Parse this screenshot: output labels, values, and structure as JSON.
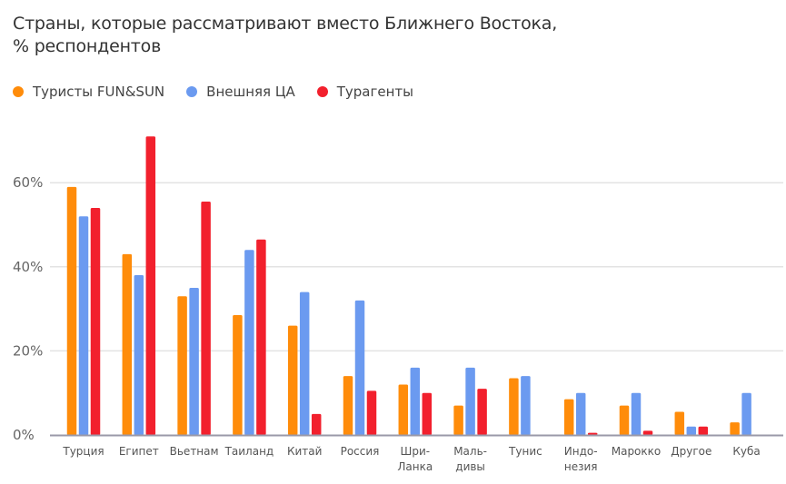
{
  "chart_data": {
    "type": "bar",
    "title": "Страны, которые рассматривают вместо Ближнего Востока, % респондентов",
    "title_lines": [
      "Страны, которые рассматривают вместо Ближнего Востока,",
      "% респондентов"
    ],
    "categories": [
      [
        "Турция"
      ],
      [
        "Египет"
      ],
      [
        "Вьетнам"
      ],
      [
        "Таиланд"
      ],
      [
        "Китай"
      ],
      [
        "Россия"
      ],
      [
        "Шри-",
        "Ланка"
      ],
      [
        "Маль-",
        "дивы"
      ],
      [
        "Тунис"
      ],
      [
        "Индо-",
        "незия"
      ],
      [
        "Марокко"
      ],
      [
        "Другое"
      ],
      [
        "Куба"
      ]
    ],
    "series": [
      {
        "name": "Туристы FUN&SUN",
        "color": "#FF8C0A",
        "values": [
          59,
          43,
          33,
          28.5,
          26,
          14,
          12,
          7,
          13.5,
          8.5,
          7,
          5.5,
          3
        ]
      },
      {
        "name": "Внешняя ЦА",
        "color": "#6B9AF0",
        "values": [
          52,
          38,
          35,
          44,
          34,
          32,
          16,
          16,
          14,
          10,
          10,
          2,
          10
        ]
      },
      {
        "name": "Турагенты",
        "color": "#F2202D",
        "values": [
          54,
          71,
          55.5,
          46.5,
          5,
          10.5,
          10,
          11,
          0,
          0.5,
          1,
          2,
          0
        ]
      }
    ],
    "yticks": [
      "0%",
      "20%",
      "40%",
      "60%"
    ],
    "ytick_values": [
      0,
      20,
      40,
      60
    ],
    "ylim": [
      0,
      72
    ],
    "grid": true,
    "legend": "top-left",
    "xlabel": "",
    "ylabel": ""
  }
}
